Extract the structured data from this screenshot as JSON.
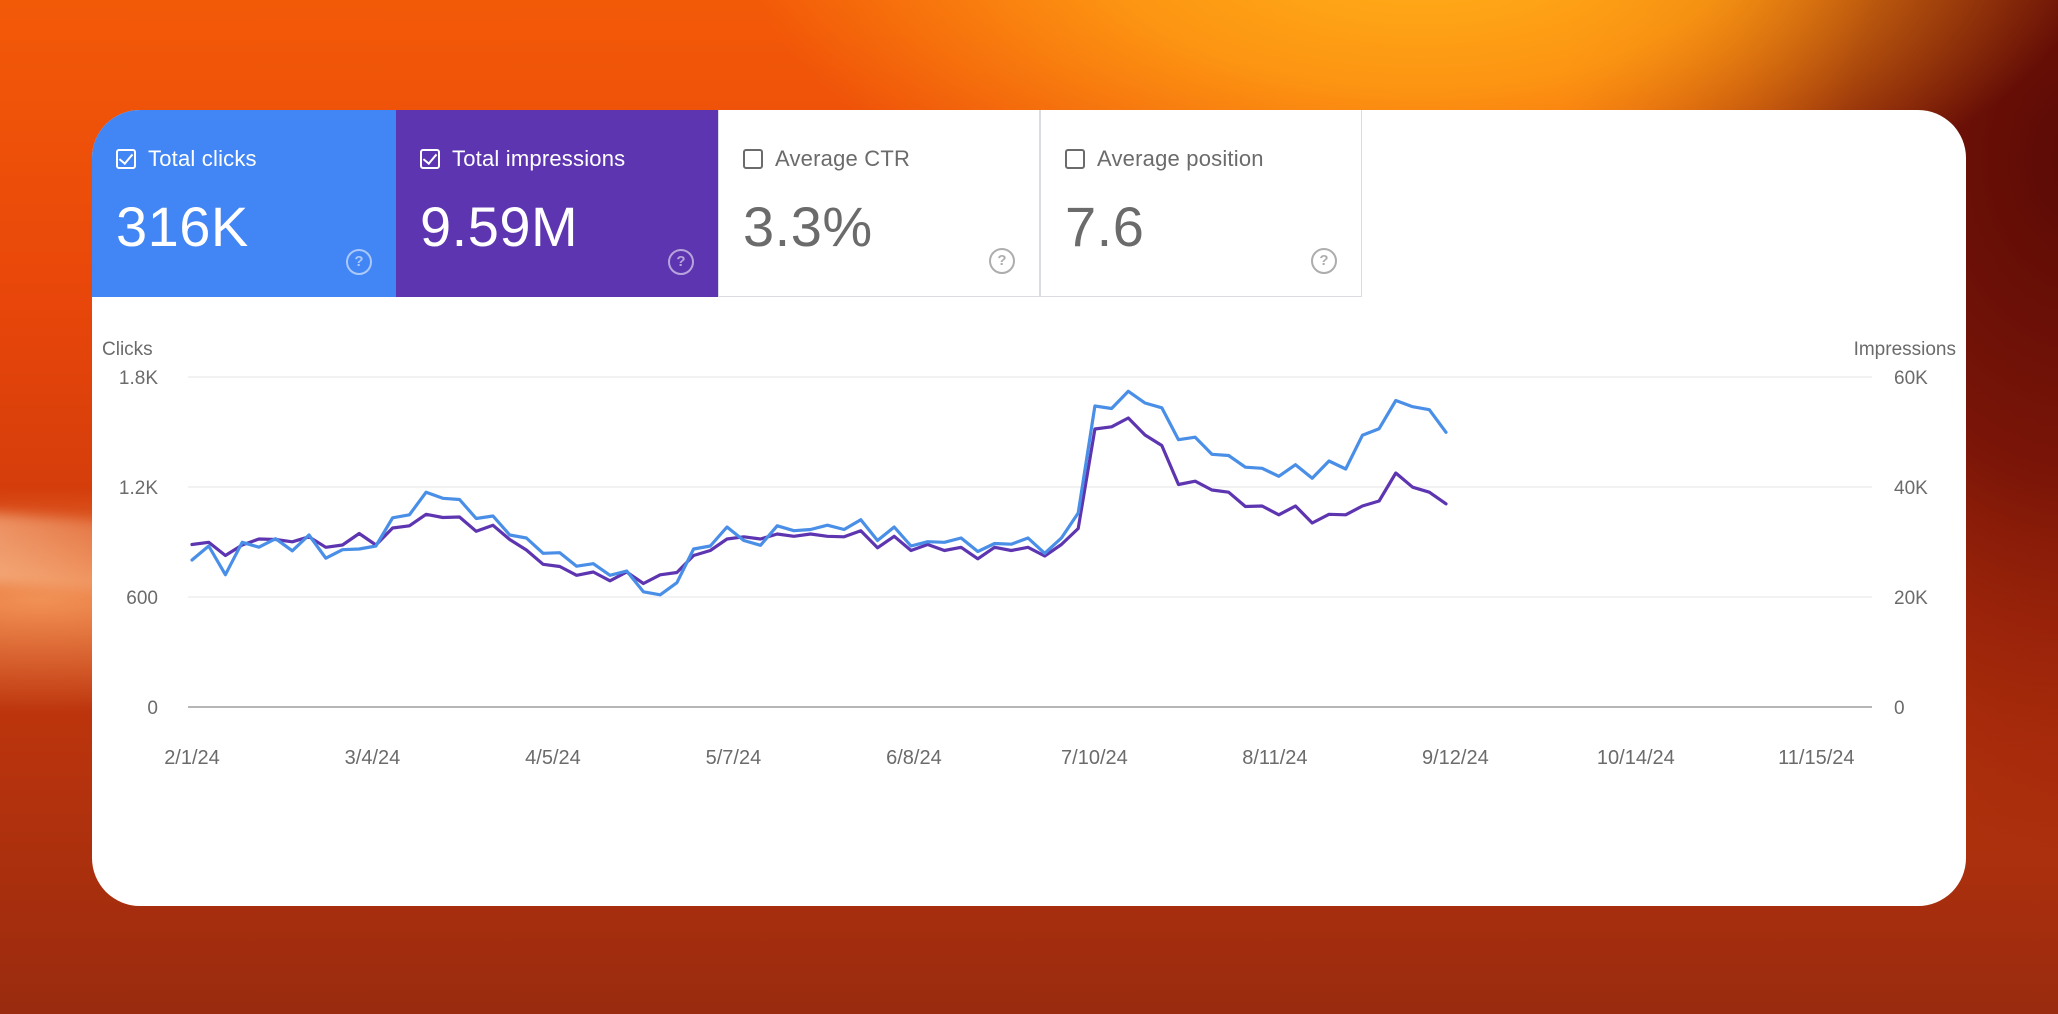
{
  "colors": {
    "clicks": "#4a8fe7",
    "impressions": "#5e35b1",
    "grid": "#e6e6e6",
    "axis_text": "#6b6b6b"
  },
  "tiles": [
    {
      "label": "Total clicks",
      "value": "316K",
      "checked": true
    },
    {
      "label": "Total impressions",
      "value": "9.59M",
      "checked": true
    },
    {
      "label": "Average CTR",
      "value": "3.3%",
      "checked": false
    },
    {
      "label": "Average position",
      "value": "7.6",
      "checked": false
    }
  ],
  "help_glyph": "?",
  "chart_data": {
    "type": "line",
    "left_axis_label": "Clicks",
    "right_axis_label": "Impressions",
    "left_ticks": [
      "0",
      "600",
      "1.2K",
      "1.8K"
    ],
    "right_ticks": [
      "0",
      "20K",
      "40K",
      "60K"
    ],
    "ylim_left": [
      0,
      1800
    ],
    "ylim_right": [
      0,
      60000
    ],
    "grid": true,
    "x_ticks": [
      "2/1/24",
      "3/4/24",
      "4/5/24",
      "5/7/24",
      "6/8/24",
      "7/10/24",
      "8/11/24",
      "9/12/24",
      "10/14/24",
      "11/15/24"
    ],
    "x_range_days": [
      0,
      300
    ],
    "series": [
      {
        "name": "Clicks",
        "axis": "left",
        "color": "#4a8fe7",
        "step_days": 3,
        "values": [
          780,
          900,
          700,
          920,
          850,
          940,
          830,
          960,
          790,
          880,
          840,
          900,
          1010,
          1070,
          1150,
          1160,
          1110,
          1050,
          1020,
          960,
          900,
          860,
          820,
          790,
          760,
          740,
          720,
          650,
          590,
          700,
          840,
          900,
          960,
          930,
          860,
          1010,
          940,
          990,
          970,
          990,
          1000,
          930,
          960,
          900,
          880,
          920,
          900,
          870,
          870,
          910,
          900,
          860,
          900,
          1080,
          1620,
          1650,
          1700,
          1680,
          1610,
          1480,
          1450,
          1400,
          1350,
          1330,
          1280,
          1280,
          1300,
          1270,
          1320,
          1320,
          1460,
          1540,
          1650,
          1660,
          1600,
          1520
        ]
      },
      {
        "name": "Impressions",
        "axis": "right",
        "color": "#5e35b1",
        "step_days": 3,
        "values": [
          29000,
          30500,
          27000,
          30000,
          30000,
          31000,
          29500,
          31500,
          28500,
          30000,
          31000,
          30000,
          32000,
          33500,
          34500,
          35000,
          34000,
          32500,
          32500,
          31000,
          28000,
          26500,
          25000,
          24500,
          24000,
          23500,
          24000,
          23000,
          23500,
          25000,
          27000,
          29000,
          30000,
          31500,
          30000,
          32000,
          30500,
          32000,
          30500,
          31500,
          31500,
          29500,
          30500,
          29000,
          29000,
          29000,
          28500,
          27500,
          28500,
          29000,
          28500,
          28000,
          29000,
          33000,
          50000,
          51500,
          52000,
          50000,
          47000,
          41000,
          40500,
          40000,
          38500,
          37000,
          36000,
          35500,
          36000,
          34000,
          34500,
          35500,
          36000,
          38000,
          42000,
          40500,
          38500,
          37500
        ]
      }
    ]
  }
}
